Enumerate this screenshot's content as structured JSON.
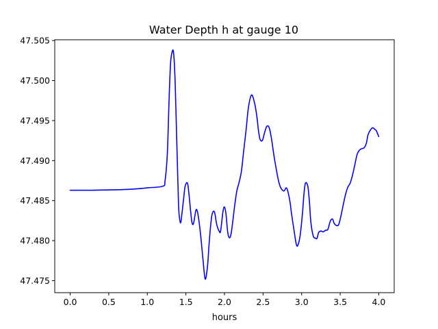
{
  "chart_data": {
    "type": "line",
    "title": "Water Depth h at gauge 10",
    "xlabel": "hours",
    "ylabel": "",
    "xlim": [
      -0.2,
      4.2
    ],
    "ylim": [
      47.4735,
      47.5051
    ],
    "grid": false,
    "x_ticks": [
      "0.0",
      "0.5",
      "1.0",
      "1.5",
      "2.0",
      "2.5",
      "3.0",
      "3.5",
      "4.0"
    ],
    "x_tick_values": [
      0.0,
      0.5,
      1.0,
      1.5,
      2.0,
      2.5,
      3.0,
      3.5,
      4.0
    ],
    "y_ticks": [
      "47.475",
      "47.480",
      "47.485",
      "47.490",
      "47.495",
      "47.500",
      "47.505"
    ],
    "y_tick_values": [
      47.475,
      47.48,
      47.485,
      47.49,
      47.495,
      47.5,
      47.505
    ],
    "series": [
      {
        "color": "#0000ff",
        "x": [
          0.0,
          0.3,
          0.75,
          1.0,
          1.2,
          1.23,
          1.26,
          1.28,
          1.3,
          1.32,
          1.34,
          1.36,
          1.38,
          1.4,
          1.41,
          1.43,
          1.45,
          1.47,
          1.49,
          1.52,
          1.54,
          1.56,
          1.58,
          1.6,
          1.63,
          1.65,
          1.67,
          1.69,
          1.72,
          1.75,
          1.78,
          1.8,
          1.82,
          1.84,
          1.87,
          1.9,
          1.93,
          1.95,
          1.98,
          2.0,
          2.02,
          2.04,
          2.06,
          2.08,
          2.1,
          2.13,
          2.16,
          2.19,
          2.22,
          2.25,
          2.28,
          2.31,
          2.35,
          2.39,
          2.42,
          2.44,
          2.46,
          2.49,
          2.52,
          2.55,
          2.58,
          2.61,
          2.64,
          2.67,
          2.7,
          2.73,
          2.77,
          2.8,
          2.82,
          2.85,
          2.87,
          2.9,
          2.93,
          2.95,
          2.98,
          3.01,
          3.03,
          3.05,
          3.08,
          3.1,
          3.12,
          3.15,
          3.18,
          3.2,
          3.22,
          3.25,
          3.28,
          3.31,
          3.34,
          3.37,
          3.4,
          3.42,
          3.45,
          3.48,
          3.51,
          3.54,
          3.57,
          3.6,
          3.63,
          3.66,
          3.69,
          3.72,
          3.75,
          3.78,
          3.81,
          3.84,
          3.86,
          3.89,
          3.92,
          3.95,
          3.97,
          4.0
        ],
        "y": [
          47.4863,
          47.4863,
          47.4864,
          47.4866,
          47.4868,
          47.4875,
          47.491,
          47.497,
          47.502,
          47.5035,
          47.5035,
          47.5,
          47.493,
          47.486,
          47.4835,
          47.4822,
          47.4835,
          47.4852,
          47.4868,
          47.4872,
          47.4858,
          47.4838,
          47.4822,
          47.4822,
          47.4838,
          47.4836,
          47.4824,
          47.4808,
          47.4778,
          47.4752,
          47.4768,
          47.4795,
          47.4818,
          47.4833,
          47.4836,
          47.482,
          47.4812,
          47.4812,
          47.4836,
          47.4842,
          47.4833,
          47.4812,
          47.4804,
          47.4806,
          47.4818,
          47.4842,
          47.4862,
          47.4873,
          47.4887,
          47.4913,
          47.4938,
          47.4966,
          47.4982,
          47.4972,
          47.4955,
          47.4938,
          47.4927,
          47.4925,
          47.4935,
          47.4943,
          47.4941,
          47.4927,
          47.4907,
          47.489,
          47.4875,
          47.4866,
          47.4862,
          47.4866,
          47.4862,
          47.4848,
          47.4833,
          47.4814,
          47.4796,
          47.4794,
          47.4806,
          47.4833,
          47.4858,
          47.4872,
          47.4868,
          47.485,
          47.4823,
          47.4806,
          47.4803,
          47.4803,
          47.481,
          47.4812,
          47.4811,
          47.4813,
          47.4814,
          47.4824,
          47.4827,
          47.4822,
          47.4819,
          47.482,
          47.4831,
          47.4845,
          47.4858,
          47.4867,
          47.4872,
          47.4882,
          47.4895,
          47.4908,
          47.4913,
          47.4915,
          47.4916,
          47.4922,
          47.4932,
          47.4938,
          47.4941,
          47.4939,
          47.4937,
          47.493
        ]
      }
    ]
  }
}
